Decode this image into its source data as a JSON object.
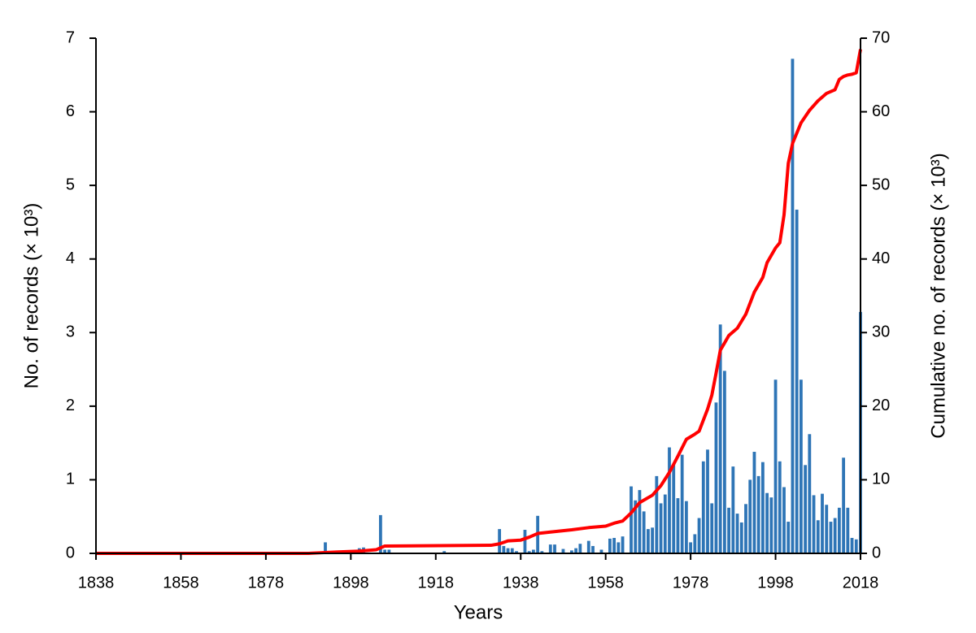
{
  "chart_data": {
    "type": "bar-line",
    "x_label": "Years",
    "y_label": "No. of records (× 10³)",
    "y2_label": "Cumulative no. of records (× 10³)",
    "xlim": [
      1838,
      2018
    ],
    "xticks": [
      1838,
      1858,
      1878,
      1898,
      1918,
      1938,
      1958,
      1978,
      1998,
      2018
    ],
    "ylim": [
      0,
      7
    ],
    "yticks": [
      0,
      1,
      2,
      3,
      4,
      5,
      6,
      7
    ],
    "y2lim": [
      0,
      70
    ],
    "y2ticks": [
      0,
      10,
      20,
      30,
      40,
      50,
      60,
      70
    ],
    "series": [
      {
        "type": "bar",
        "color": "#2e75b6",
        "x": [
          1892,
          1900,
          1901,
          1905,
          1906,
          1907,
          1920,
          1933,
          1934,
          1935,
          1936,
          1937,
          1939,
          1940,
          1941,
          1942,
          1943,
          1945,
          1946,
          1948,
          1950,
          1951,
          1952,
          1954,
          1955,
          1957,
          1959,
          1960,
          1961,
          1962,
          1964,
          1965,
          1966,
          1967,
          1968,
          1969,
          1970,
          1971,
          1972,
          1973,
          1974,
          1975,
          1976,
          1977,
          1978,
          1979,
          1980,
          1981,
          1982,
          1983,
          1984,
          1985,
          1986,
          1987,
          1988,
          1989,
          1990,
          1991,
          1992,
          1993,
          1994,
          1995,
          1996,
          1997,
          1998,
          1999,
          2000,
          2001,
          2002,
          2003,
          2004,
          2005,
          2006,
          2007,
          2008,
          2009,
          2010,
          2011,
          2012,
          2013,
          2014,
          2015,
          2016,
          2017,
          2018
        ],
        "values": [
          0.15,
          0.07,
          0.08,
          0.52,
          0.05,
          0.05,
          0.03,
          0.33,
          0.1,
          0.07,
          0.07,
          0.03,
          0.32,
          0.03,
          0.05,
          0.51,
          0.03,
          0.12,
          0.12,
          0.06,
          0.04,
          0.07,
          0.13,
          0.17,
          0.1,
          0.05,
          0.2,
          0.21,
          0.15,
          0.23,
          0.91,
          0.72,
          0.86,
          0.57,
          0.33,
          0.35,
          1.05,
          0.68,
          0.8,
          1.44,
          1.21,
          0.75,
          1.34,
          0.71,
          0.15,
          0.26,
          0.48,
          1.25,
          1.41,
          0.68,
          2.05,
          3.11,
          2.48,
          0.62,
          1.18,
          0.54,
          0.42,
          0.67,
          1.0,
          1.38,
          1.05,
          1.24,
          0.82,
          0.76,
          2.36,
          1.25,
          0.9,
          0.43,
          6.72,
          4.67,
          2.36,
          1.2,
          1.62,
          0.79,
          0.45,
          0.81,
          0.66,
          0.43,
          0.48,
          0.62,
          1.3,
          0.62,
          0.21,
          0.19,
          3.28
        ]
      },
      {
        "type": "line",
        "axis": "y2",
        "color": "#ff0000",
        "x": [
          1838,
          1888,
          1895,
          1900,
          1904,
          1906,
          1931,
          1933,
          1935,
          1938,
          1940,
          1942,
          1945,
          1950,
          1954,
          1958,
          1960,
          1962,
          1964,
          1966,
          1969,
          1971,
          1973,
          1975,
          1977,
          1979,
          1980,
          1982,
          1983,
          1984,
          1985,
          1986,
          1987,
          1989,
          1991,
          1993,
          1995,
          1996,
          1998,
          1999,
          2000,
          2001,
          2002,
          2004,
          2006,
          2008,
          2010,
          2012,
          2013,
          2014,
          2015,
          2016,
          2017,
          2018
        ],
        "values": [
          0,
          0,
          0.2,
          0.3,
          0.5,
          1.0,
          1.1,
          1.3,
          1.7,
          1.8,
          2.2,
          2.7,
          2.9,
          3.2,
          3.5,
          3.7,
          4.1,
          4.4,
          5.5,
          6.9,
          7.9,
          9.2,
          11.0,
          13.2,
          15.5,
          16.2,
          16.6,
          19.6,
          21.5,
          24.5,
          27.6,
          28.6,
          29.6,
          30.6,
          32.5,
          35.5,
          37.5,
          39.5,
          41.5,
          42.2,
          46,
          53,
          55.7,
          58.5,
          60.2,
          61.5,
          62.5,
          63,
          64.4,
          64.8,
          65.0,
          65.1,
          65.3,
          68.5
        ]
      }
    ]
  }
}
